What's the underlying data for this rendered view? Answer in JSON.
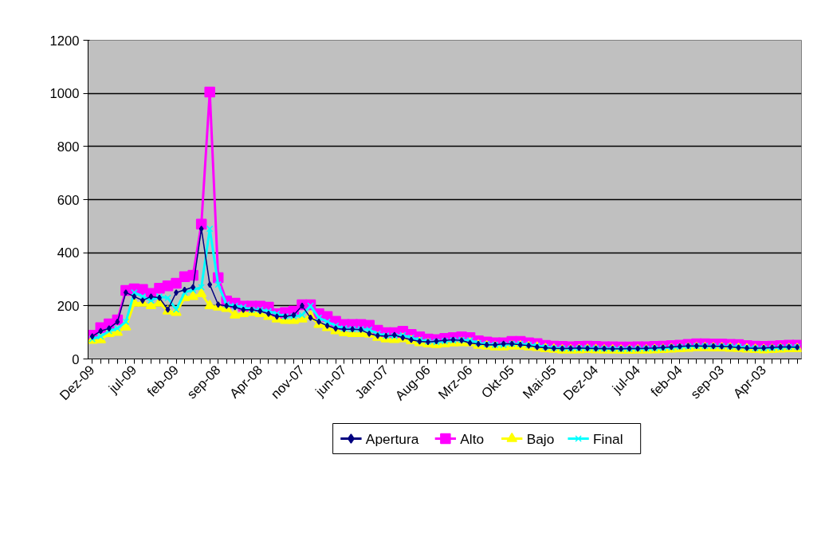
{
  "chart_data": {
    "type": "line",
    "categories": [
      "Dez-09",
      null,
      null,
      null,
      null,
      "jul-09",
      null,
      null,
      null,
      null,
      "feb-09",
      null,
      null,
      null,
      null,
      "sep-08",
      null,
      null,
      null,
      null,
      "Apr-08",
      null,
      null,
      null,
      null,
      "nov-07",
      null,
      null,
      null,
      null,
      "jun-07",
      null,
      null,
      null,
      null,
      "Jan-07",
      null,
      null,
      null,
      null,
      "Aug-06",
      null,
      null,
      null,
      null,
      "Mrz-06",
      null,
      null,
      null,
      null,
      "Okt-05",
      null,
      null,
      null,
      null,
      "Mai-05",
      null,
      null,
      null,
      null,
      "Dez-04",
      null,
      null,
      null,
      null,
      "jul-04",
      null,
      null,
      null,
      null,
      "feb-04",
      null,
      null,
      null,
      null,
      "sep-03",
      null,
      null,
      null,
      null,
      "Apr-03",
      null,
      null,
      null,
      null
    ],
    "series": [
      {
        "name": "Apertura",
        "color": "#000080",
        "marker": "diamond",
        "values": [
          85,
          105,
          115,
          140,
          250,
          235,
          220,
          235,
          230,
          186,
          250,
          260,
          270,
          490,
          280,
          205,
          200,
          195,
          185,
          185,
          180,
          170,
          160,
          160,
          165,
          200,
          155,
          140,
          125,
          115,
          112,
          112,
          110,
          95,
          88,
          86,
          90,
          80,
          72,
          66,
          64,
          67,
          70,
          72,
          70,
          60,
          56,
          53,
          53,
          57,
          57,
          53,
          50,
          45,
          42,
          40,
          39,
          40,
          41,
          40,
          39,
          39,
          38,
          38,
          39,
          39,
          40,
          41,
          43,
          45,
          47,
          49,
          49,
          48,
          48,
          47,
          46,
          43,
          41,
          40,
          41,
          43,
          45,
          45,
          44
        ]
      },
      {
        "name": "Alto",
        "color": "#ff00ff",
        "marker": "square",
        "values": [
          89,
          118,
          132,
          147,
          258,
          264,
          262,
          247,
          266,
          275,
          285,
          310,
          315,
          508,
          1005,
          306,
          218,
          210,
          199,
          199,
          199,
          195,
          170,
          175,
          180,
          204,
          204,
          170,
          160,
          142,
          130,
          130,
          130,
          127,
          108,
          99,
          99,
          104,
          92,
          83,
          75,
          73,
          77,
          80,
          83,
          80,
          68,
          64,
          61,
          61,
          66,
          66,
          61,
          58,
          51,
          48,
          47,
          46,
          47,
          48,
          47,
          46,
          46,
          45,
          45,
          46,
          46,
          47,
          48,
          50,
          52,
          55,
          57,
          57,
          56,
          56,
          55,
          54,
          50,
          48,
          47,
          48,
          50,
          52,
          52
        ]
      },
      {
        "name": "Bajo",
        "color": "#ffff00",
        "marker": "triangle",
        "values": [
          70,
          72,
          95,
          100,
          120,
          210,
          210,
          200,
          210,
          180,
          175,
          230,
          235,
          245,
          200,
          195,
          190,
          165,
          170,
          175,
          170,
          160,
          150,
          145,
          145,
          150,
          160,
          130,
          118,
          106,
          98,
          95,
          95,
          93,
          81,
          75,
          73,
          76,
          68,
          61,
          56,
          54,
          57,
          60,
          61,
          60,
          51,
          48,
          45,
          45,
          48,
          48,
          45,
          43,
          38,
          36,
          33,
          33,
          34,
          35,
          34,
          33,
          33,
          32,
          32,
          33,
          33,
          34,
          35,
          37,
          38,
          40,
          42,
          42,
          41,
          41,
          40,
          39,
          37,
          35,
          34,
          35,
          37,
          38,
          38
        ]
      },
      {
        "name": "Final",
        "color": "#00ffff",
        "marker": "cross",
        "values": [
          75,
          85,
          105,
          115,
          140,
          250,
          235,
          220,
          235,
          230,
          186,
          250,
          260,
          270,
          490,
          280,
          205,
          200,
          195,
          185,
          185,
          180,
          170,
          160,
          160,
          165,
          200,
          155,
          140,
          125,
          115,
          112,
          112,
          110,
          95,
          88,
          86,
          90,
          80,
          72,
          66,
          64,
          67,
          70,
          72,
          70,
          60,
          56,
          53,
          53,
          57,
          57,
          53,
          50,
          45,
          42,
          40,
          39,
          40,
          41,
          40,
          39,
          39,
          38,
          38,
          39,
          39,
          40,
          41,
          43,
          45,
          47,
          49,
          49,
          48,
          48,
          47,
          46,
          43,
          41,
          40,
          41,
          43,
          45,
          45
        ]
      }
    ],
    "ylim": [
      0,
      1200
    ],
    "yticks": [
      0,
      200,
      400,
      600,
      800,
      1000,
      1200
    ],
    "grid": "y",
    "legend": "bottom"
  }
}
